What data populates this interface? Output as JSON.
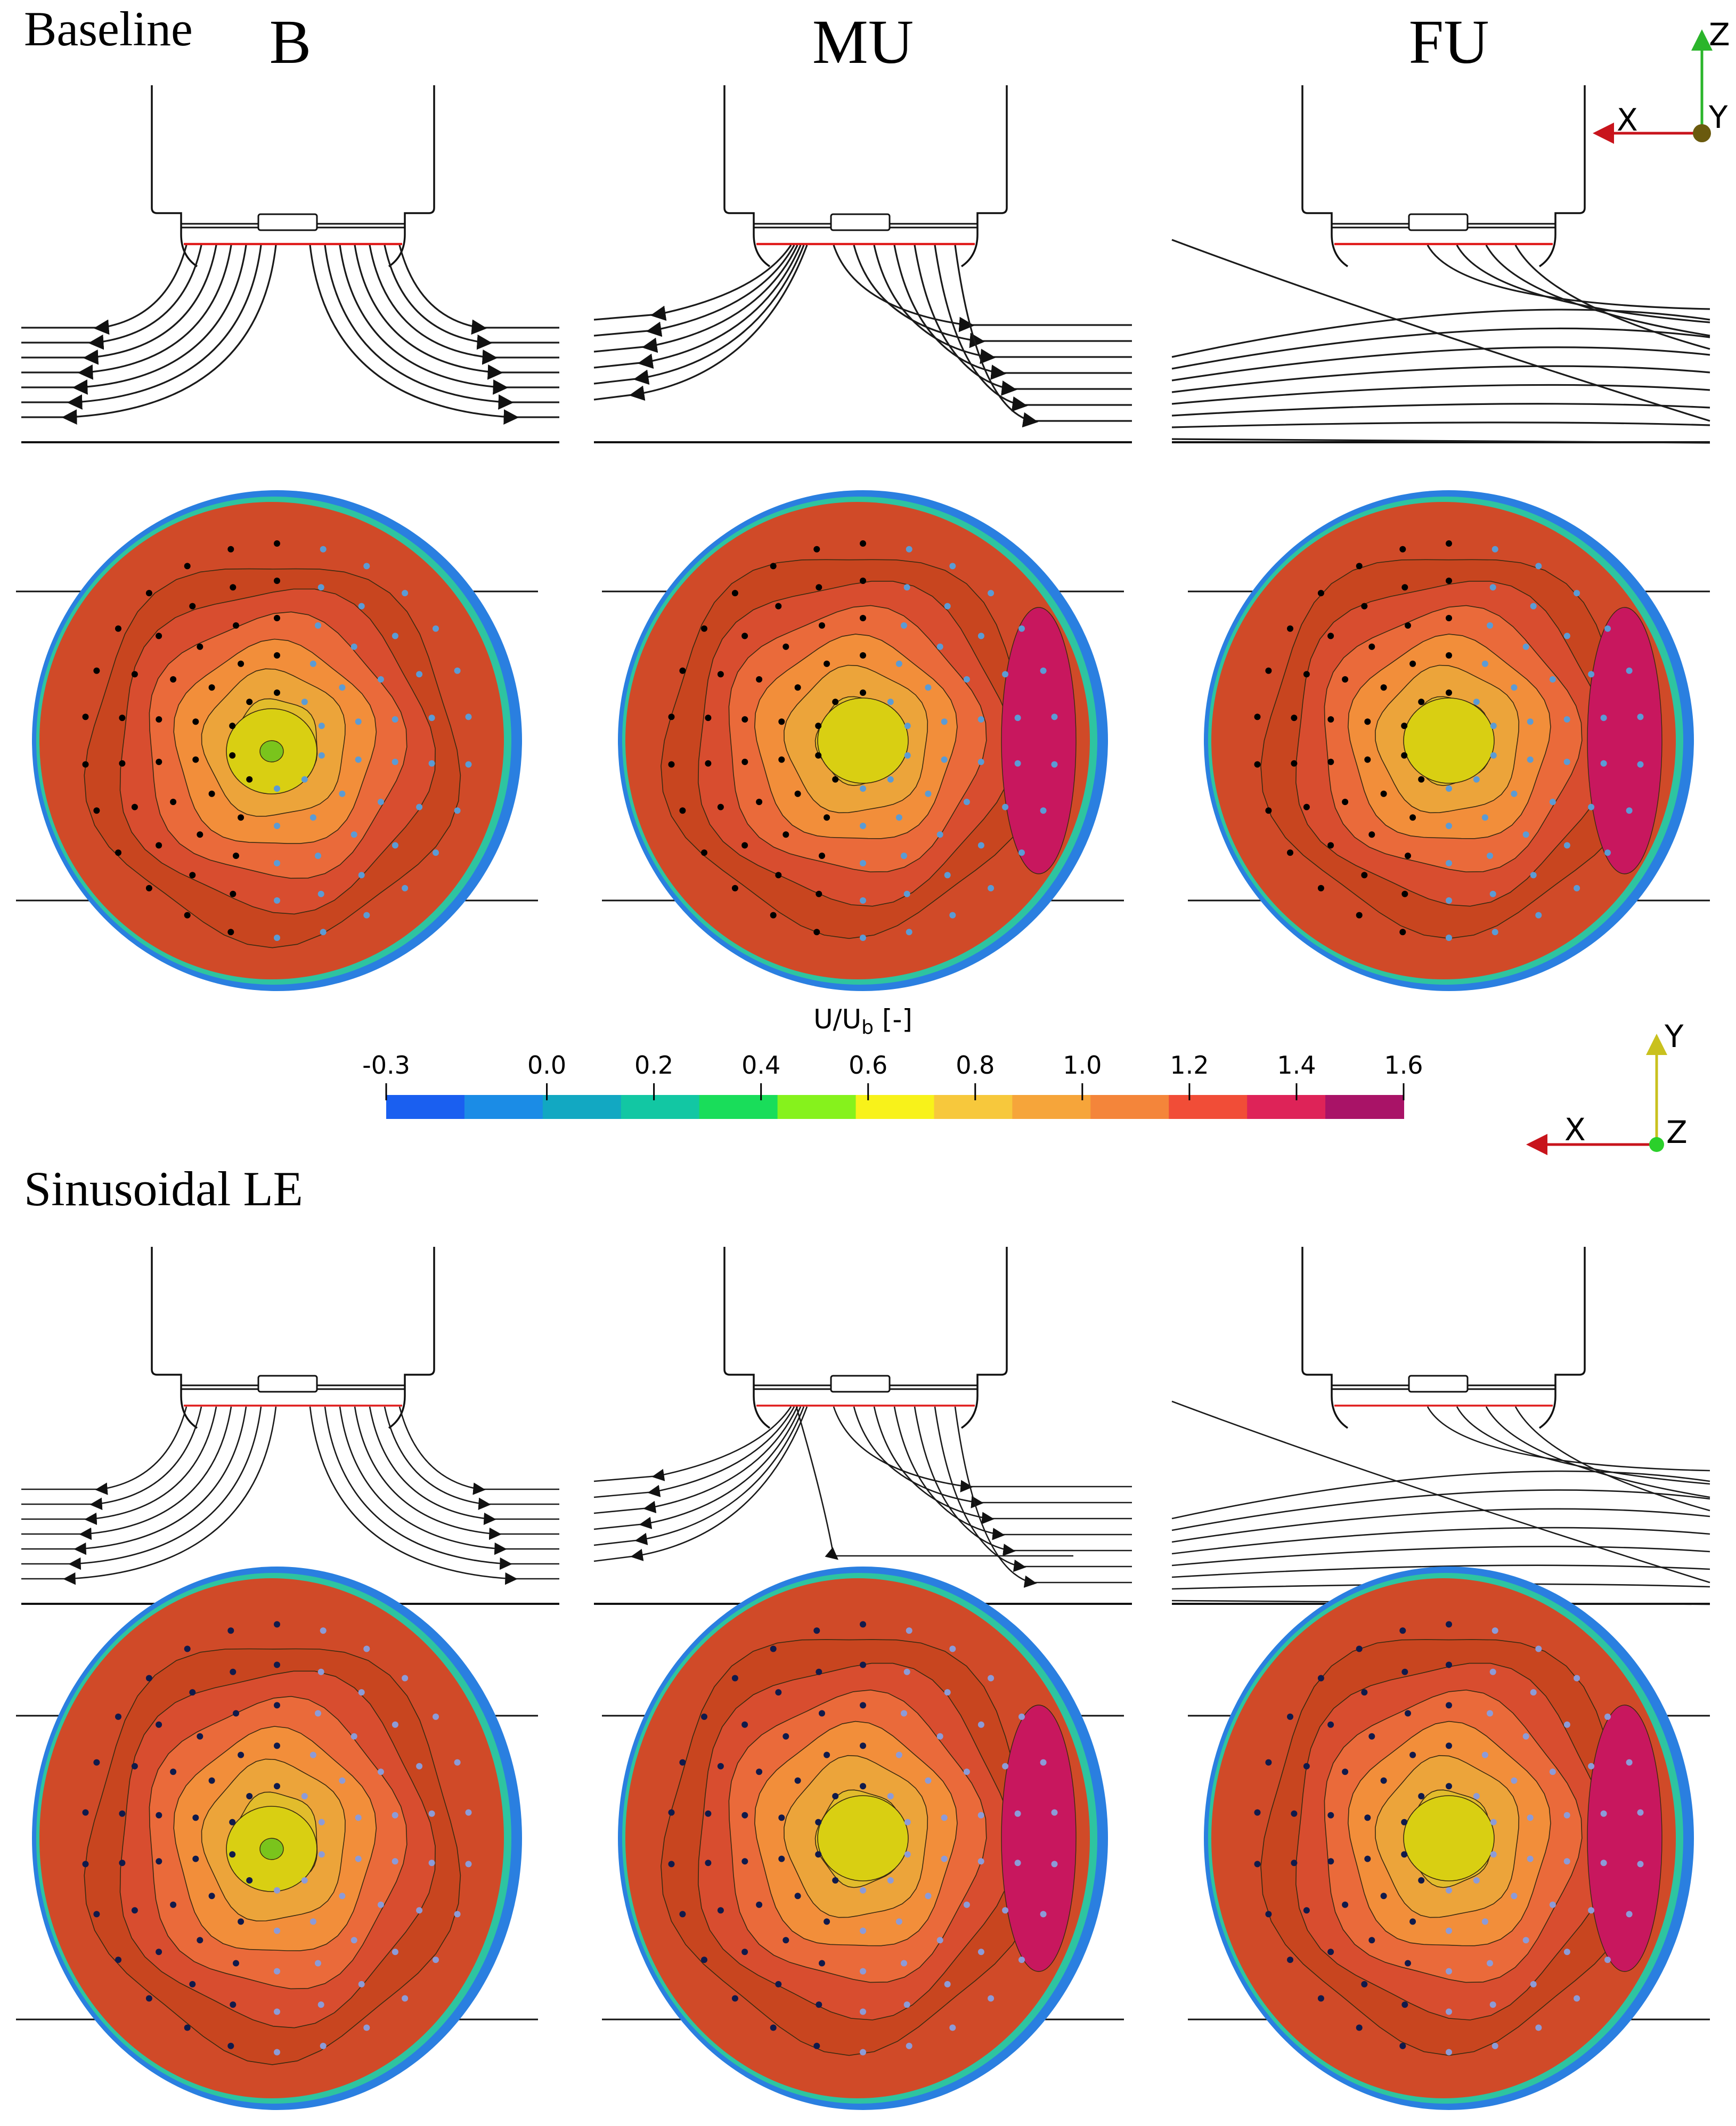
{
  "sections": [
    {
      "title": "Baseline"
    },
    {
      "title": "Sinusoidal LE"
    }
  ],
  "columns": [
    "B",
    "MU",
    "FU"
  ],
  "side_axes_triad": {
    "labels": [
      "Z",
      "X",
      "Y"
    ]
  },
  "front_axes_triad": {
    "labels": [
      "Y",
      "X",
      "Z"
    ]
  },
  "colorbar": {
    "label_prefix": "U/U",
    "label_sub": "b",
    "label_suffix": " [-]",
    "ticks": [
      "-0.3",
      "0.0",
      "0.2",
      "0.4",
      "0.6",
      "0.8",
      "1.0",
      "1.2",
      "1.4",
      "1.6"
    ],
    "tick_values": [
      -0.3,
      0.0,
      0.2,
      0.4,
      0.6,
      0.8,
      1.0,
      1.2,
      1.4,
      1.6
    ],
    "range": [
      -0.3,
      1.6
    ],
    "colors": [
      "#1a5ff0",
      "#1b8ce6",
      "#12a8c2",
      "#12c7a3",
      "#19dd5a",
      "#86f21c",
      "#f8f21a",
      "#f7c83c",
      "#f6a53a",
      "#f4853a",
      "#f14d37",
      "#de2358",
      "#a91367"
    ]
  },
  "colors": {
    "streamline": "#1a1a1a",
    "rotor_plane": "#e01b1b",
    "retreating_markers": "#000000",
    "advancing_markers": "#5b9bd5",
    "retreating_markers_sin": "#101a4c",
    "advancing_markers_sin": "#8c9bd8"
  }
}
